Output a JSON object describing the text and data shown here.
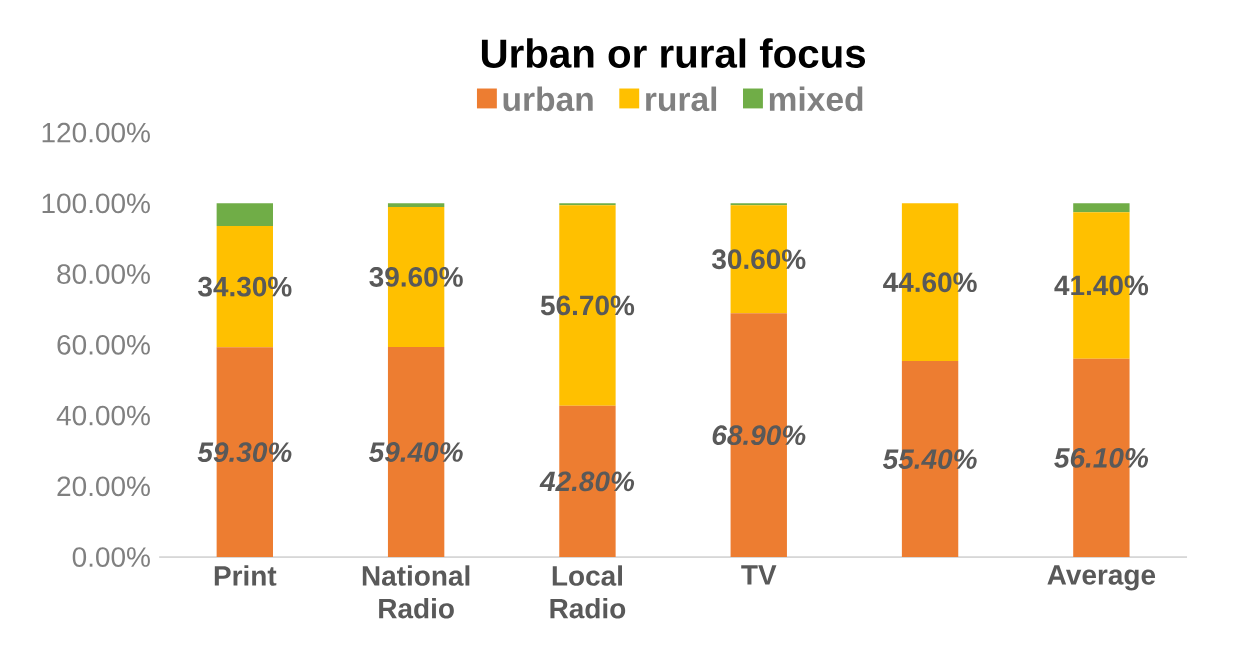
{
  "chart_data": {
    "type": "bar",
    "stacked": true,
    "title": "Urban or rural focus",
    "categories": [
      "Print",
      "National Radio",
      "Local Radio",
      "TV",
      null,
      "Average"
    ],
    "series": [
      {
        "name": "urban",
        "color": "#ed7d31",
        "values": [
          59.3,
          59.4,
          42.8,
          68.9,
          55.4,
          56.1
        ],
        "value_labels": [
          "59.30%",
          "59.40%",
          "42.80%",
          "68.90%",
          "55.40%",
          "56.10%"
        ]
      },
      {
        "name": "rural",
        "color": "#ffc000",
        "values": [
          34.3,
          39.6,
          56.7,
          30.6,
          44.6,
          41.4
        ],
        "value_labels": [
          "34.30%",
          "39.60%",
          "56.70%",
          "30.60%",
          "44.60%",
          "41.40%"
        ]
      },
      {
        "name": "mixed",
        "color": "#70ad47",
        "values": [
          6.4,
          1.0,
          0.5,
          0.5,
          0,
          2.5
        ]
      }
    ],
    "ylim": [
      0,
      120
    ],
    "yticks": [
      {
        "value": 0,
        "label": "0.00%"
      },
      {
        "value": 20,
        "label": "20.00%"
      },
      {
        "value": 40,
        "label": "40.00%"
      },
      {
        "value": 60,
        "label": "60.00%"
      },
      {
        "value": 80,
        "label": "80.00%"
      },
      {
        "value": 100,
        "label": "100.00%"
      },
      {
        "value": 120,
        "label": "120.00%"
      }
    ],
    "grid": false,
    "legend": "top"
  }
}
